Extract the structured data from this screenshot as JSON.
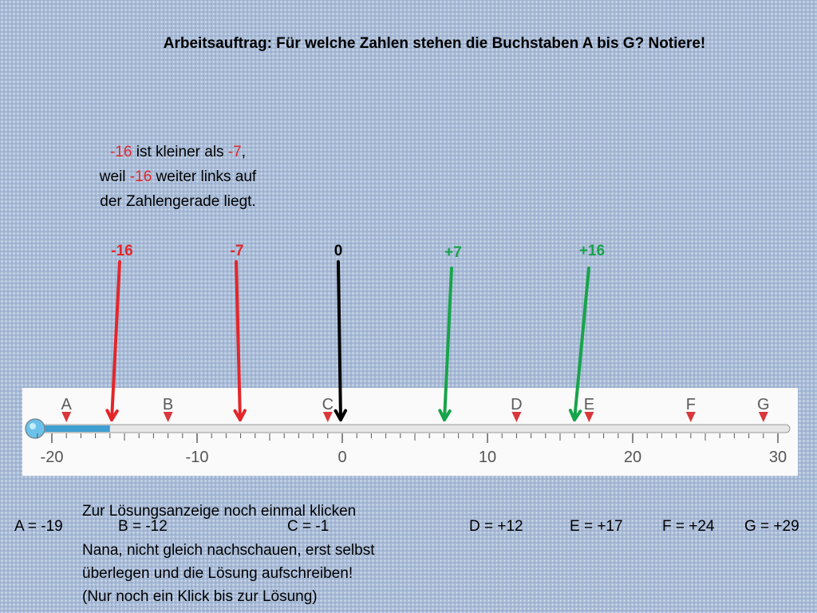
{
  "title": "Arbeitsauftrag: Für welche Zahlen stehen die Buchstaben A bis G? Notiere!",
  "explanation": {
    "line1": {
      "a": "-16",
      "b": " ist kleiner als ",
      "c": "-7",
      "d": ","
    },
    "line2": {
      "a": "weil ",
      "b": "-16",
      "c": " weiter links auf"
    },
    "line3": "der Zahlengerade liegt."
  },
  "number_line": {
    "min": -20,
    "max": 30,
    "tick_labels": [
      "-20",
      "-10",
      "0",
      "10",
      "20",
      "30"
    ],
    "filled_to": -16,
    "letters": [
      {
        "label": "A",
        "value": -19
      },
      {
        "label": "B",
        "value": -12
      },
      {
        "label": "C",
        "value": -1
      },
      {
        "label": "D",
        "value": 12
      },
      {
        "label": "E",
        "value": 17
      },
      {
        "label": "F",
        "value": 24
      },
      {
        "label": "G",
        "value": 29
      }
    ]
  },
  "arrows": [
    {
      "label": "-16",
      "value": -16,
      "color": "#e3262a"
    },
    {
      "label": "-7",
      "value": -7,
      "color": "#e3262a"
    },
    {
      "label": "0",
      "value": 0,
      "color": "#000000"
    },
    {
      "label": "+7",
      "value": 7,
      "color": "#17a44a"
    },
    {
      "label": "+16",
      "value": 16,
      "color": "#17a44a"
    }
  ],
  "answers": {
    "a": "A = -19",
    "b": "B = -12",
    "c": "C = -1",
    "d": "D = +12",
    "e": "E = +17",
    "f": "F = +24",
    "g": "G = +29"
  },
  "notes": {
    "click_hint": "Zur Lösungsanzeige noch einmal klicken",
    "line1": "Nana, nicht gleich nachschauen, erst selbst",
    "line2": "überlegen und die Lösung aufschreiben!",
    "line3": "(Nur noch ein Klick bis zur Lösung)"
  },
  "colors": {
    "red": "#e3262a",
    "green": "#17a44a",
    "marker": "#d8383c",
    "bar_fill": "#3e9fd0",
    "background": "#a7bad6"
  }
}
